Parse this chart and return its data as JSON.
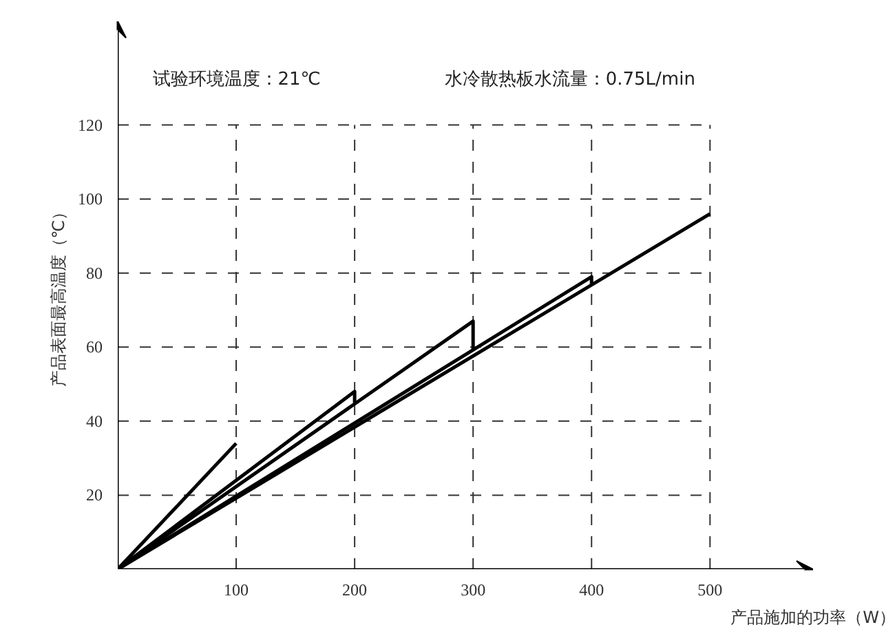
{
  "chart_data": {
    "type": "line",
    "xlabel": "产品施加的功率（W）",
    "ylabel": "产品表面最高温度（℃）",
    "annotations": [
      "试验环境温度：21℃",
      "水冷散热板水流量：0.75L/min"
    ],
    "series": [
      {
        "color": "#000000",
        "x": [
          0,
          100
        ],
        "values": [
          0,
          34
        ]
      },
      {
        "color": "#000000",
        "x": [
          0,
          200,
          200
        ],
        "values": [
          0,
          48,
          45
        ]
      },
      {
        "color": "#000000",
        "x": [
          0,
          300,
          300
        ],
        "values": [
          0,
          67,
          59
        ]
      },
      {
        "color": "#000000",
        "x": [
          0,
          400,
          400
        ],
        "values": [
          0,
          79,
          77
        ]
      },
      {
        "color": "#000000",
        "x": [
          0,
          500
        ],
        "values": [
          0,
          96
        ]
      }
    ],
    "xlim": [
      0,
      587
    ],
    "ylim": [
      0,
      148
    ],
    "xticks": [
      100,
      200,
      300,
      400,
      500
    ],
    "yticks": [
      20,
      40,
      60,
      80,
      100,
      120
    ],
    "grid": true,
    "line_style": "solid",
    "marker": "none"
  }
}
